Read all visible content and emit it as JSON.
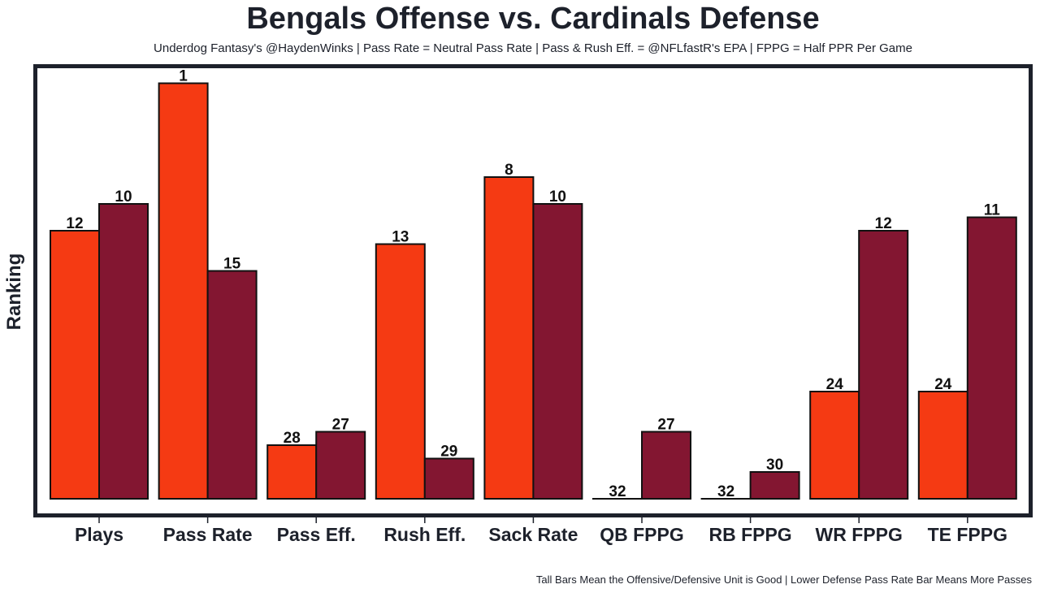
{
  "chart_data": {
    "type": "bar",
    "title": "Bengals Offense vs. Cardinals Defense",
    "subtitle": "Underdog Fantasy's @HaydenWinks | Pass Rate = Neutral Pass Rate | Pass & Rush Eff. = @NFLfastR's EPA | FPPG = Half PPR Per Game",
    "footer": "Tall Bars Mean the Offensive/Defensive Unit is Good | Lower Defense Pass Rate Bar Means More Passes",
    "xlabel": "",
    "ylabel": "Ranking",
    "categories": [
      "Plays",
      "Pass Rate",
      "Pass Eff.",
      "Rush Eff.",
      "Sack Rate",
      "QB FPPG",
      "RB FPPG",
      "WR FPPG",
      "TE FPPG"
    ],
    "series": [
      {
        "name": "Bengals Offense",
        "color": "#f53a13",
        "values": [
          12,
          1,
          28,
          13,
          8,
          32,
          32,
          24,
          24
        ]
      },
      {
        "name": "Cardinals Defense",
        "color": "#831631",
        "values": [
          10,
          15,
          27,
          29,
          10,
          27,
          30,
          12,
          11
        ]
      }
    ],
    "value_meaning": "rank (1 = best, 32 = worst); bar height = 32 - rank",
    "rank_range": [
      1,
      32
    ],
    "grid": false,
    "legend": "none",
    "data_labels": true
  }
}
